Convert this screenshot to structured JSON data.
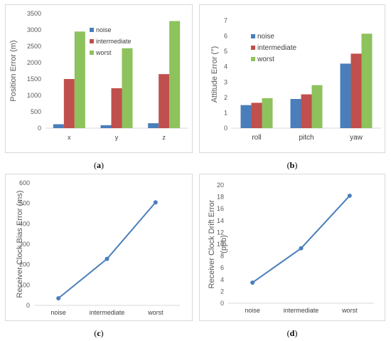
{
  "captions": {
    "a": "a",
    "b": "b",
    "c": "c",
    "d": "d"
  },
  "chart_data": [
    {
      "id": "a",
      "type": "bar",
      "categories": [
        "x",
        "y",
        "z"
      ],
      "ylabel": "Position Error (m)",
      "ylim": [
        0,
        3500
      ],
      "yticks": [
        0,
        500,
        1000,
        1500,
        2000,
        2500,
        3000,
        3500
      ],
      "legend_position": "top-left",
      "series": [
        {
          "name": "noise",
          "color": "#4a7ebb",
          "values": [
            120,
            90,
            150
          ]
        },
        {
          "name": "intermediate",
          "color": "#c0504d",
          "values": [
            1500,
            1220,
            1650
          ]
        },
        {
          "name": "worst",
          "color": "#8dc25c",
          "values": [
            2950,
            2440,
            3270
          ]
        }
      ]
    },
    {
      "id": "b",
      "type": "bar",
      "categories": [
        "roll",
        "pitch",
        "yaw"
      ],
      "ylabel": "Attitude Error (°)",
      "ylim": [
        0,
        7
      ],
      "yticks": [
        0,
        1,
        2,
        3,
        4,
        5,
        6,
        7
      ],
      "legend_position": "top-left",
      "series": [
        {
          "name": "noise",
          "color": "#4a7ebb",
          "values": [
            1.5,
            1.9,
            4.2
          ]
        },
        {
          "name": "intermediate",
          "color": "#c0504d",
          "values": [
            1.65,
            2.2,
            4.85
          ]
        },
        {
          "name": "worst",
          "color": "#8dc25c",
          "values": [
            1.95,
            2.8,
            6.15
          ]
        }
      ]
    },
    {
      "id": "c",
      "type": "line",
      "categories": [
        "noise",
        "intermediate",
        "worst"
      ],
      "ylabel": "Receiver Clock Bias Error (ms)",
      "ylim": [
        0,
        600
      ],
      "yticks": [
        0,
        100,
        200,
        300,
        400,
        500,
        600
      ],
      "series": [
        {
          "color": "#4a7ebb",
          "values": [
            35,
            228,
            505
          ]
        }
      ]
    },
    {
      "id": "d",
      "type": "line",
      "categories": [
        "noise",
        "intermediate",
        "worst"
      ],
      "ylabel": [
        "Receiver Clock Drift Error",
        "(ppb)"
      ],
      "ylim": [
        0,
        20
      ],
      "yticks": [
        0,
        2,
        4,
        6,
        8,
        10,
        12,
        14,
        16,
        18,
        20
      ],
      "series": [
        {
          "color": "#4a7ebb",
          "values": [
            3.5,
            9.3,
            18.2
          ]
        }
      ]
    }
  ]
}
